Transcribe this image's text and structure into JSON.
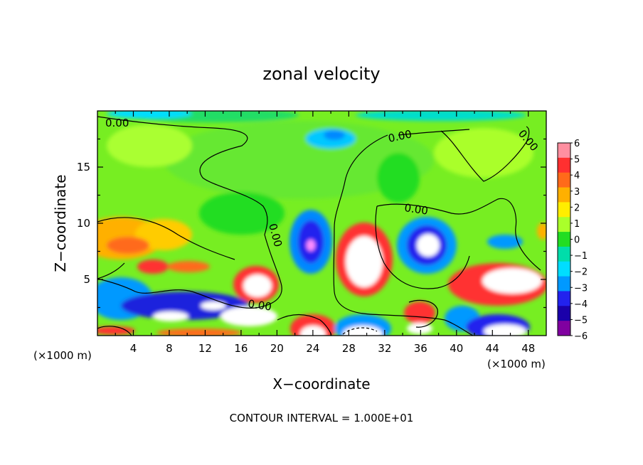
{
  "chart_data": {
    "type": "heatmap",
    "title": "zonal velocity",
    "xlabel": "X−coordinate",
    "ylabel": "Z−coordinate",
    "x_unit_left": "(×1000 m)",
    "x_unit_right": "(×1000 m)",
    "footer": "CONTOUR INTERVAL = 1.000E+01",
    "xlim": [
      0,
      50
    ],
    "ylim": [
      0,
      20
    ],
    "x_ticks": [
      4,
      8,
      12,
      16,
      20,
      24,
      28,
      32,
      36,
      40,
      44,
      48
    ],
    "x_tick_labels": [
      "4",
      "8",
      "12",
      "16",
      "20",
      "24",
      "28",
      "32",
      "36",
      "40",
      "44",
      "48"
    ],
    "y_ticks": [
      5,
      10,
      15
    ],
    "y_tick_labels": [
      "5",
      "10",
      "15"
    ],
    "colorbar": {
      "min": -6,
      "max": 6,
      "labels": [
        "6",
        "5",
        "4",
        "3",
        "2",
        "1",
        "0",
        "−1",
        "−2",
        "−3",
        "−4",
        "−5",
        "−6"
      ],
      "colors": [
        "#ff8fa0",
        "#ff3030",
        "#ff6a1a",
        "#ffb000",
        "#ffee00",
        "#aaff2a",
        "#22dd22",
        "#00ddaa",
        "#00ddff",
        "#0099ff",
        "#2222ee",
        "#1a00aa",
        "#8000a0"
      ]
    },
    "contour_labels": [
      "0.00",
      "0.00",
      "0.00",
      "0.00",
      "0.00",
      "0.00"
    ],
    "field_value_range": [
      -6,
      6
    ]
  }
}
